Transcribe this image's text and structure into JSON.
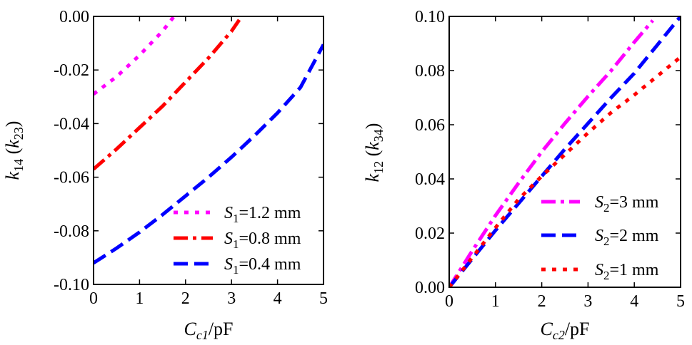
{
  "chart_data": [
    {
      "type": "line",
      "x_range": [
        0,
        5
      ],
      "y_range": [
        -0.1,
        0.0
      ],
      "x_ticks": [
        "0",
        "1",
        "2",
        "3",
        "4",
        "5"
      ],
      "y_ticks": [
        "-0.10",
        "-0.08",
        "-0.06",
        "-0.04",
        "-0.02",
        "0.00"
      ],
      "x_tick_values": [
        0,
        1,
        2,
        3,
        4,
        5
      ],
      "y_tick_values": [
        -0.1,
        -0.08,
        -0.06,
        -0.04,
        -0.02,
        0.0
      ],
      "xlabel": {
        "main": "C",
        "sub": "c1",
        "suffix": "/pF"
      },
      "ylabel": {
        "main": "k",
        "sub": "14",
        "paren_main": "k",
        "paren_sub": "23"
      },
      "legend_position": "bottom-right",
      "series": [
        {
          "name_main": "S",
          "name_sub": "1",
          "name_suffix": "=1.2 mm",
          "color": "#ff00ff",
          "dash": "dot",
          "x": [
            0,
            0.5,
            1.0,
            1.5,
            1.75
          ],
          "y": [
            -0.029,
            -0.0225,
            -0.0145,
            -0.0055,
            0.0
          ]
        },
        {
          "name_main": "S",
          "name_sub": "1",
          "name_suffix": "=0.8 mm",
          "color": "#ff0000",
          "dash": "dashdot",
          "x": [
            0,
            0.5,
            1.0,
            1.5,
            2.0,
            2.5,
            3.0,
            3.22
          ],
          "y": [
            -0.057,
            -0.0495,
            -0.0415,
            -0.0335,
            -0.0245,
            -0.0155,
            -0.0055,
            0.0
          ]
        },
        {
          "name_main": "S",
          "name_sub": "1",
          "name_suffix": "=0.4 mm",
          "color": "#0000ff",
          "dash": "dash",
          "x": [
            0,
            0.5,
            1.0,
            1.5,
            2.0,
            2.5,
            3.0,
            3.5,
            4.0,
            4.5,
            5.0
          ],
          "y": [
            -0.092,
            -0.0865,
            -0.0805,
            -0.074,
            -0.067,
            -0.06,
            -0.0525,
            -0.0445,
            -0.036,
            -0.0265,
            -0.0105
          ]
        }
      ]
    },
    {
      "type": "line",
      "x_range": [
        0,
        5
      ],
      "y_range": [
        0.0,
        0.1
      ],
      "x_ticks": [
        "0",
        "1",
        "2",
        "3",
        "4",
        "5"
      ],
      "y_ticks": [
        "0.00",
        "0.02",
        "0.04",
        "0.06",
        "0.08",
        "0.10"
      ],
      "x_tick_values": [
        0,
        1,
        2,
        3,
        4,
        5
      ],
      "y_tick_values": [
        0.0,
        0.02,
        0.04,
        0.06,
        0.08,
        0.1
      ],
      "xlabel": {
        "main": "C",
        "sub": "c2",
        "suffix": "/pF"
      },
      "ylabel": {
        "main": "k",
        "sub": "12",
        "paren_main": "k",
        "paren_sub": "34"
      },
      "legend_position": "bottom-right",
      "series": [
        {
          "name_main": "S",
          "name_sub": "2",
          "name_suffix": "=3 mm",
          "color": "#ff00ff",
          "dash": "dashdot",
          "x": [
            0,
            0.5,
            1.0,
            1.5,
            2.0,
            2.5,
            3.0,
            3.5,
            4.0,
            4.4
          ],
          "y": [
            0,
            0.0135,
            0.0265,
            0.0385,
            0.05,
            0.0605,
            0.0705,
            0.08,
            0.0905,
            0.0985
          ]
        },
        {
          "name_main": "S",
          "name_sub": "2",
          "name_suffix": "=2 mm",
          "color": "#0000ff",
          "dash": "dash",
          "x": [
            0,
            0.5,
            1.0,
            1.5,
            2.0,
            2.5,
            3.0,
            3.5,
            4.0,
            4.5,
            5.0
          ],
          "y": [
            0,
            0.0105,
            0.021,
            0.031,
            0.041,
            0.051,
            0.0605,
            0.07,
            0.079,
            0.0895,
            0.1
          ]
        },
        {
          "name_main": "S",
          "name_sub": "2",
          "name_suffix": "=1 mm",
          "color": "#ff0000",
          "dash": "dot",
          "x": [
            0,
            0.5,
            1.0,
            1.5,
            2.0,
            2.5,
            3.0,
            3.5,
            4.0,
            4.5,
            5.0
          ],
          "y": [
            0,
            0.011,
            0.022,
            0.0325,
            0.041,
            0.049,
            0.057,
            0.0645,
            0.071,
            0.078,
            0.085
          ]
        }
      ]
    }
  ]
}
